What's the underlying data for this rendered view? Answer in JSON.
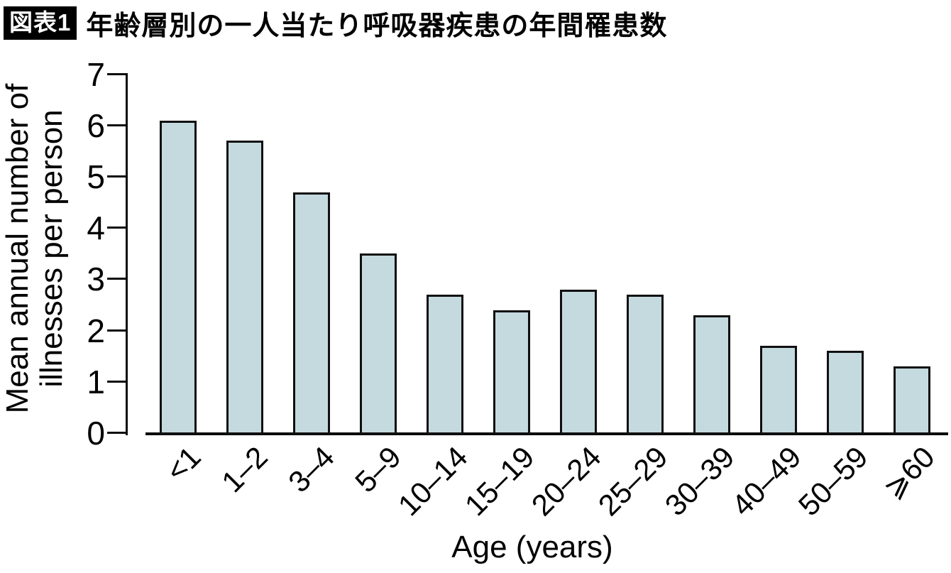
{
  "figure_label": "図表1",
  "title": "年齢層別の一人当たり呼吸器疾患の年間罹患数",
  "chart_data": {
    "type": "bar",
    "categories": [
      "<1",
      "1–2",
      "3–4",
      "5–9",
      "10–14",
      "15–19",
      "20–24",
      "25–29",
      "30–39",
      "40–49",
      "50–59",
      "⩾60"
    ],
    "values": [
      6.1,
      5.7,
      4.7,
      3.5,
      2.7,
      2.4,
      2.8,
      2.7,
      2.3,
      1.7,
      1.6,
      1.3
    ],
    "title": "",
    "xlabel": "Age (years)",
    "ylabel": "Mean annual number of illnesses per person",
    "ylabel_lines": [
      "Mean annual number of",
      "illnesses per person"
    ],
    "ylim": [
      0,
      7
    ],
    "yticks": [
      0,
      1,
      2,
      3,
      4,
      5,
      6,
      7
    ],
    "grid": false,
    "legend_position": "none",
    "bar_fill_color": "#c4dadf",
    "bar_border_color": "#101010",
    "axis_color": "#0a0a0a"
  }
}
